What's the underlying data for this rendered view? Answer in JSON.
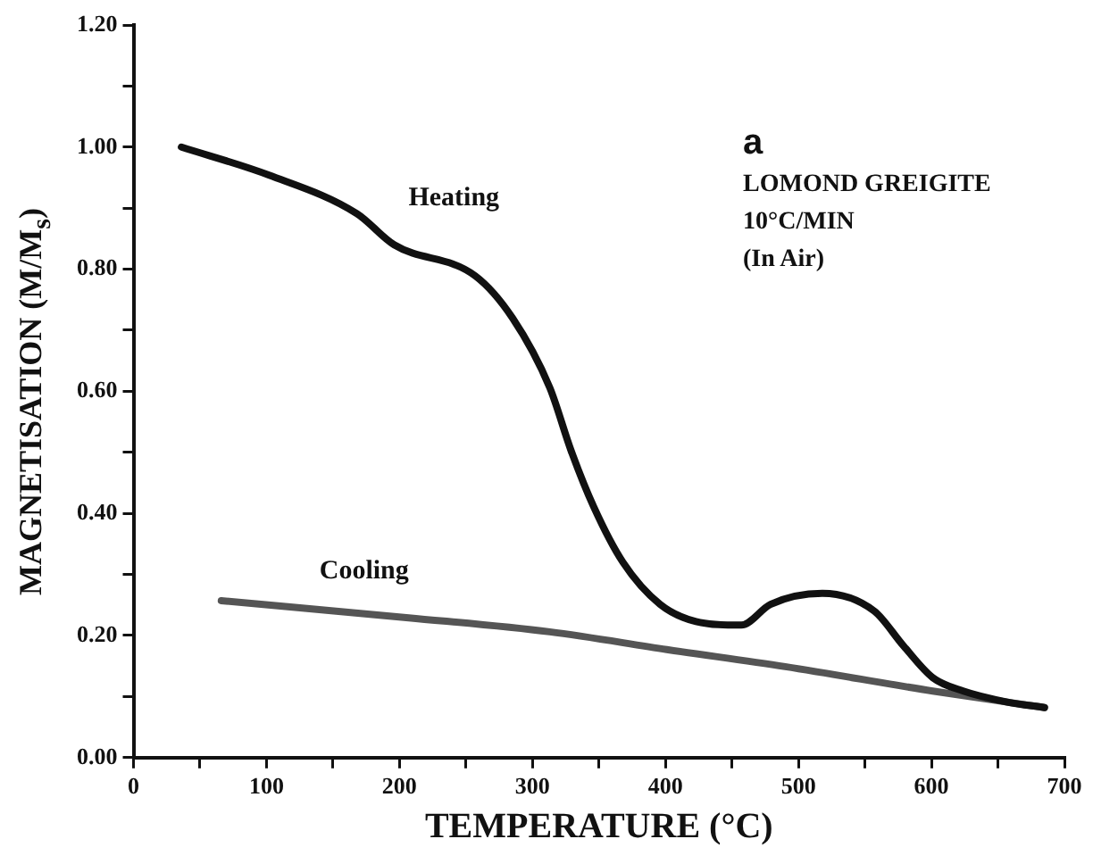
{
  "chart_data": {
    "type": "line",
    "xlabel": "TEMPERATURE (°C)",
    "ylabel": "MAGNETISATION (M/M$_{s}$)",
    "annotations": [
      "a",
      "LOMOND GREIGITE",
      "10°C/MIN",
      "(In Air)"
    ],
    "series": [
      {
        "name": "Heating",
        "color": "#111111",
        "x": [
          36,
          102,
          168,
          196,
          257,
          285,
          313,
          329,
          346,
          368,
          396,
          423,
          457,
          479,
          518,
          557,
          579,
          601,
          624,
          657,
          685
        ],
        "values": [
          1.0,
          0.954,
          0.891,
          0.84,
          0.789,
          0.72,
          0.606,
          0.503,
          0.411,
          0.32,
          0.251,
          0.223,
          0.217,
          0.251,
          0.269,
          0.24,
          0.183,
          0.131,
          0.109,
          0.091,
          0.082
        ]
      },
      {
        "name": "Cooling",
        "color": "#555555",
        "x": [
          66,
          207,
          313,
          401,
          490,
          601,
          685
        ],
        "values": [
          0.257,
          0.229,
          0.206,
          0.177,
          0.149,
          0.109,
          0.082
        ]
      }
    ],
    "xlim": [
      0,
      700
    ],
    "xticks": [
      0,
      {
        "value": 50,
        "label": null
      },
      100,
      {
        "value": 150,
        "label": null
      },
      200,
      {
        "value": 250,
        "label": null
      },
      300,
      {
        "value": 350,
        "label": null
      },
      400,
      {
        "value": 450,
        "label": null
      },
      500,
      {
        "value": 550,
        "label": null
      },
      600,
      {
        "value": 650,
        "label": null
      },
      700
    ],
    "ylim": [
      0,
      1.2
    ],
    "yticks": [
      {
        "value": 0,
        "label": "0.00"
      },
      {
        "value": 0.1,
        "label": null
      },
      {
        "value": 0.2,
        "label": "0.20"
      },
      {
        "value": 0.3,
        "label": null
      },
      {
        "value": 0.4,
        "label": "0.40"
      },
      {
        "value": 0.5,
        "label": null
      },
      {
        "value": 0.6,
        "label": "0.60"
      },
      {
        "value": 0.7,
        "label": null
      },
      {
        "value": 0.8,
        "label": "0.80"
      },
      {
        "value": 0.9,
        "label": null
      },
      {
        "value": 1.0,
        "label": "1.00"
      },
      {
        "value": 1.1,
        "label": null
      },
      {
        "value": 1.2,
        "label": "1.20"
      }
    ],
    "grid": false,
    "legend": false,
    "marker": "none",
    "line_style": "solid"
  }
}
